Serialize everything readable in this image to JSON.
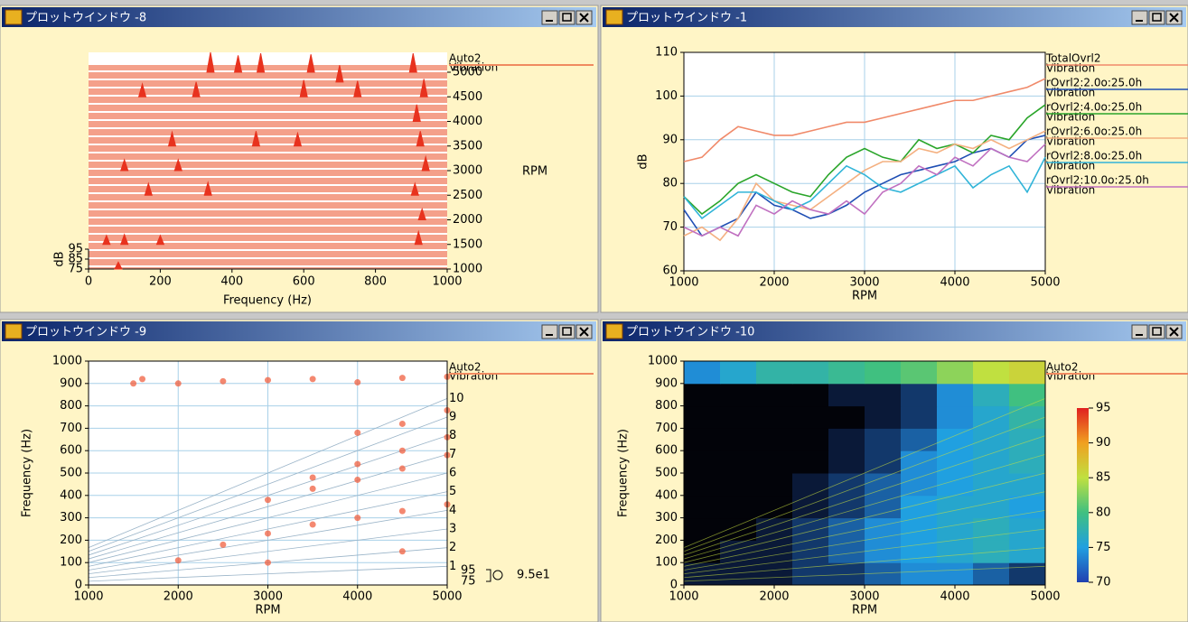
{
  "windows": [
    {
      "title": "プロットウインドウ -8",
      "chart": {
        "type": "waterfall",
        "x_label": "Frequency  (Hz)",
        "y_label": "RPM",
        "db_label": "dB",
        "xlim": [
          0,
          1000
        ],
        "xticks": [
          0,
          200,
          400,
          600,
          800,
          1000
        ],
        "ylim": [
          1000,
          5000
        ],
        "yticks": [
          1000,
          1500,
          2000,
          2500,
          3000,
          3500,
          4000,
          4500,
          5000
        ],
        "dblim": [
          75,
          95
        ],
        "dbticks": [
          75,
          85,
          95
        ],
        "series_name": "Auto2",
        "channel": "Vibration",
        "color": "#e8321e",
        "legend_color": "#f08a60",
        "peaks": {
          "x": [
            50,
            100,
            150,
            100,
            167,
            233,
            300,
            200,
            333,
            467,
            600,
            83,
            250,
            417,
            583,
            750,
            920,
            930,
            910,
            940,
            925,
            915,
            935,
            905,
            340,
            480,
            620,
            700
          ],
          "y": [
            1500,
            3000,
            4500,
            1500,
            2500,
            3500,
            4500,
            1500,
            2500,
            3500,
            4500,
            1000,
            3000,
            5000,
            3500,
            4500,
            1500,
            2000,
            2500,
            3000,
            3500,
            4000,
            4500,
            5000,
            5000,
            5000,
            5000,
            4800
          ],
          "db": [
            84,
            86,
            88,
            85,
            87,
            89,
            90,
            84,
            88,
            90,
            92,
            82,
            86,
            92,
            88,
            91,
            88,
            86,
            87,
            89,
            90,
            92,
            93,
            94,
            95,
            94,
            93,
            92
          ]
        }
      }
    },
    {
      "title": "プロットウインドウ -1",
      "chart": {
        "type": "line",
        "x_label": "RPM",
        "y_label": "dB",
        "xlim": [
          1000,
          5000
        ],
        "xticks": [
          1000,
          2000,
          3000,
          4000,
          5000
        ],
        "ylim": [
          60,
          110
        ],
        "yticks": [
          60,
          70,
          80,
          90,
          100,
          110
        ],
        "grid": true,
        "x": [
          1000,
          1200,
          1400,
          1600,
          1800,
          2000,
          2200,
          2400,
          2600,
          2800,
          3000,
          3200,
          3400,
          3600,
          3800,
          4000,
          4200,
          4400,
          4600,
          4800,
          5000
        ],
        "series": [
          {
            "name": "TotalOvrl2",
            "channel": "Vibration",
            "color": "#f08a6a",
            "values": [
              85,
              86,
              90,
              93,
              92,
              91,
              91,
              92,
              93,
              94,
              94,
              95,
              96,
              97,
              98,
              99,
              99,
              100,
              101,
              102,
              104
            ]
          },
          {
            "name": "rOvrl2:2.0o:25.0h",
            "channel": "Vibration",
            "color": "#1f4fb4",
            "values": [
              74,
              68,
              70,
              72,
              78,
              75,
              74,
              72,
              73,
              75,
              78,
              80,
              82,
              83,
              84,
              85,
              87,
              88,
              86,
              90,
              91
            ]
          },
          {
            "name": "rOvrl2:4.0o:25.0h",
            "channel": "Vibration",
            "color": "#2aa52a",
            "values": [
              77,
              73,
              76,
              80,
              82,
              80,
              78,
              77,
              82,
              86,
              88,
              86,
              85,
              90,
              88,
              89,
              87,
              91,
              90,
              95,
              98
            ]
          },
          {
            "name": "rOvrl2:6.0o:25.0h",
            "channel": "Vibration",
            "color": "#f4b080",
            "values": [
              68,
              70,
              67,
              72,
              80,
              76,
              75,
              74,
              77,
              80,
              83,
              85,
              85,
              88,
              87,
              89,
              88,
              90,
              88,
              90,
              92
            ]
          },
          {
            "name": "rOvrl2:8.0o:25.0h",
            "channel": "Vibration",
            "color": "#30b4d8",
            "values": [
              77,
              72,
              75,
              78,
              78,
              76,
              74,
              76,
              80,
              84,
              82,
              79,
              78,
              80,
              82,
              84,
              79,
              82,
              84,
              78,
              86
            ]
          },
          {
            "name": "rOvrl2:10.0o:25.0h",
            "channel": "Vibration",
            "color": "#c070c0",
            "values": [
              70,
              68,
              70,
              68,
              75,
              73,
              76,
              74,
              73,
              76,
              73,
              78,
              80,
              84,
              82,
              86,
              84,
              88,
              86,
              85,
              89
            ]
          }
        ]
      }
    },
    {
      "title": "プロットウインドウ -9",
      "chart": {
        "type": "scatter",
        "x_label": "RPM",
        "y_label": "Frequency  (Hz)",
        "xlim": [
          1000,
          5000
        ],
        "xticks": [
          1000,
          2000,
          3000,
          4000,
          5000
        ],
        "ylim": [
          0,
          1000
        ],
        "yticks": [
          0,
          100,
          200,
          300,
          400,
          500,
          600,
          700,
          800,
          900,
          1000
        ],
        "grid": true,
        "orders": [
          1,
          2,
          3,
          4,
          5,
          6,
          7,
          8,
          9,
          10
        ],
        "series_name": "Auto2",
        "channel": "Vibration",
        "color": "#f06040",
        "legend_color": "#f08a60",
        "size_labels": [
          95,
          75
        ],
        "size_value": "9.5e1",
        "x": [
          1500,
          1600,
          2000,
          2500,
          3000,
          3500,
          4000,
          4500,
          5000,
          2500,
          3000,
          3500,
          4000,
          4500,
          5000,
          3000,
          3500,
          4000,
          4500,
          5000,
          3500,
          4000,
          4500,
          5000,
          4000,
          4500,
          5000,
          2000,
          3000,
          4500
        ],
        "y": [
          900,
          920,
          900,
          910,
          915,
          920,
          905,
          925,
          930,
          180,
          230,
          270,
          300,
          330,
          360,
          380,
          430,
          470,
          520,
          580,
          480,
          540,
          600,
          660,
          680,
          720,
          780,
          110,
          100,
          150
        ]
      }
    },
    {
      "title": "プロットウインドウ -10",
      "chart": {
        "type": "heatmap",
        "x_label": "RPM",
        "y_label": "Frequency  (Hz)",
        "xlim": [
          1000,
          5000
        ],
        "xticks": [
          1000,
          2000,
          3000,
          4000,
          5000
        ],
        "ylim": [
          0,
          1000
        ],
        "yticks": [
          0,
          100,
          200,
          300,
          400,
          500,
          600,
          700,
          800,
          900,
          1000
        ],
        "orders": [
          1,
          2,
          3,
          4,
          5,
          6,
          7,
          8,
          9,
          10
        ],
        "series_name": "Auto2",
        "channel": "Vibration",
        "legend_color": "#f08a60",
        "clim": [
          70,
          95
        ],
        "cticks": [
          70,
          75,
          80,
          85,
          90,
          95
        ],
        "z": [
          [
            71,
            71,
            71,
            72,
            72,
            73,
            74,
            74,
            73,
            72
          ],
          [
            70,
            71,
            71,
            72,
            73,
            74,
            75,
            76,
            77,
            76
          ],
          [
            70,
            70,
            71,
            72,
            73,
            74,
            75,
            76,
            77,
            76
          ],
          [
            70,
            70,
            70,
            71,
            72,
            73,
            75,
            76,
            76,
            75
          ],
          [
            70,
            70,
            70,
            71,
            72,
            73,
            74,
            75,
            76,
            76
          ],
          [
            70,
            70,
            70,
            70,
            71,
            72,
            74,
            75,
            76,
            77
          ],
          [
            70,
            70,
            70,
            70,
            71,
            72,
            73,
            75,
            76,
            77
          ],
          [
            70,
            70,
            70,
            70,
            70,
            71,
            72,
            74,
            76,
            78
          ],
          [
            70,
            70,
            70,
            70,
            71,
            71,
            72,
            74,
            77,
            80
          ],
          [
            74,
            76,
            78,
            78,
            79,
            80,
            81,
            83,
            85,
            86
          ]
        ]
      }
    }
  ]
}
